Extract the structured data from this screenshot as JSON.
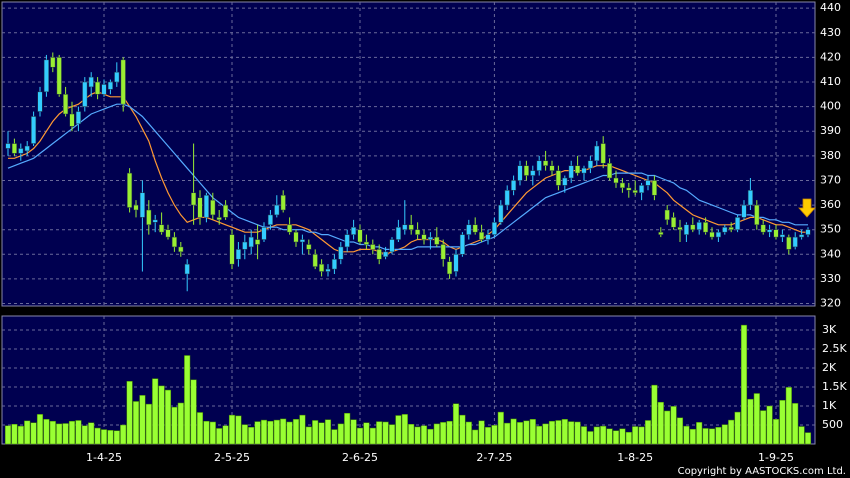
{
  "chart_data": {
    "type": "candlestick",
    "categories": [
      null,
      null,
      null,
      null,
      null,
      null,
      null,
      null,
      null,
      null,
      null,
      null,
      null,
      null,
      null,
      "1-4-25",
      null,
      null,
      null,
      null,
      null,
      null,
      null,
      null,
      null,
      null,
      null,
      null,
      null,
      null,
      null,
      null,
      null,
      null,
      null,
      "2-5-25",
      null,
      null,
      null,
      null,
      null,
      null,
      null,
      null,
      null,
      null,
      null,
      null,
      null,
      null,
      null,
      null,
      null,
      null,
      null,
      "2-6-25",
      null,
      null,
      null,
      null,
      null,
      null,
      null,
      null,
      null,
      null,
      null,
      null,
      null,
      null,
      null,
      null,
      null,
      null,
      null,
      null,
      "2-7-25",
      null,
      null,
      null,
      null,
      null,
      null,
      null,
      null,
      null,
      null,
      null,
      null,
      null,
      null,
      null,
      null,
      null,
      null,
      null,
      null,
      null,
      "1-8-25",
      null,
      null,
      null,
      null,
      null,
      null,
      null,
      null,
      null,
      null,
      null,
      null,
      null,
      null,
      null,
      null,
      null,
      null,
      null,
      null,
      null,
      "1-9-25",
      null,
      null,
      null,
      null,
      null
    ],
    "candles": [
      [
        383,
        390,
        380,
        385
      ],
      [
        385,
        387,
        380,
        381
      ],
      [
        381,
        385,
        378,
        383
      ],
      [
        382,
        386,
        380,
        384
      ],
      [
        385,
        398,
        384,
        396
      ],
      [
        398,
        408,
        396,
        406
      ],
      [
        406,
        421,
        404,
        419
      ],
      [
        420,
        422,
        414,
        416
      ],
      [
        420,
        421,
        404,
        405
      ],
      [
        405,
        408,
        396,
        397
      ],
      [
        397,
        402,
        390,
        392
      ],
      [
        393,
        400,
        390,
        398
      ],
      [
        400,
        412,
        398,
        410
      ],
      [
        408,
        414,
        404,
        412
      ],
      [
        410,
        412,
        403,
        405
      ],
      [
        405,
        411,
        404,
        409
      ],
      [
        407,
        411,
        405,
        410
      ],
      [
        410,
        418,
        408,
        414
      ],
      [
        419,
        420,
        398,
        401
      ],
      [
        373,
        375,
        357,
        359
      ],
      [
        360,
        362,
        355,
        358
      ],
      [
        355,
        370,
        333,
        365
      ],
      [
        358,
        362,
        348,
        352
      ],
      [
        353,
        356,
        349,
        354
      ],
      [
        352,
        357,
        348,
        349
      ],
      [
        350,
        352,
        346,
        347
      ],
      [
        347,
        349,
        341,
        343
      ],
      [
        343,
        345,
        339,
        341
      ],
      [
        332,
        338,
        325,
        336
      ],
      [
        365,
        385,
        352,
        360
      ],
      [
        363,
        366,
        352,
        355
      ],
      [
        355,
        365,
        353,
        364
      ],
      [
        362,
        365,
        354,
        356
      ],
      [
        355,
        358,
        352,
        354
      ],
      [
        360,
        362,
        354,
        355
      ],
      [
        348,
        350,
        334,
        336
      ],
      [
        338,
        345,
        335,
        342
      ],
      [
        342,
        348,
        338,
        345
      ],
      [
        343,
        350,
        340,
        347
      ],
      [
        346,
        352,
        338,
        344
      ],
      [
        346,
        353,
        345,
        351
      ],
      [
        352,
        358,
        350,
        356
      ],
      [
        356,
        364,
        355,
        360
      ],
      [
        364,
        366,
        357,
        358
      ],
      [
        352,
        355,
        348,
        349
      ],
      [
        349,
        350,
        343,
        345
      ],
      [
        345,
        348,
        340,
        346
      ],
      [
        344,
        346,
        340,
        342
      ],
      [
        340,
        342,
        334,
        335
      ],
      [
        336,
        338,
        331,
        333
      ],
      [
        333,
        336,
        331,
        334
      ],
      [
        334,
        340,
        332,
        338
      ],
      [
        338,
        345,
        336,
        343
      ],
      [
        343,
        350,
        341,
        348
      ],
      [
        348,
        354,
        346,
        351
      ],
      [
        350,
        352,
        344,
        345
      ],
      [
        345,
        348,
        342,
        344
      ],
      [
        344,
        346,
        340,
        342
      ],
      [
        342,
        344,
        336,
        338
      ],
      [
        339,
        343,
        338,
        341
      ],
      [
        341,
        347,
        340,
        346
      ],
      [
        346,
        354,
        345,
        351
      ],
      [
        350,
        362,
        348,
        352
      ],
      [
        352,
        356,
        348,
        350
      ],
      [
        350,
        353,
        346,
        348
      ],
      [
        348,
        350,
        344,
        346
      ],
      [
        346,
        349,
        342,
        347
      ],
      [
        347,
        351,
        343,
        344
      ],
      [
        344,
        346,
        335,
        338
      ],
      [
        337,
        339,
        330,
        332
      ],
      [
        333,
        342,
        331,
        340
      ],
      [
        340,
        349,
        339,
        348
      ],
      [
        348,
        354,
        346,
        352
      ],
      [
        352,
        355,
        348,
        349
      ],
      [
        349,
        352,
        345,
        346
      ],
      [
        346,
        350,
        344,
        348
      ],
      [
        348,
        355,
        347,
        353
      ],
      [
        353,
        362,
        352,
        360
      ],
      [
        360,
        368,
        358,
        366
      ],
      [
        366,
        372,
        364,
        370
      ],
      [
        370,
        378,
        368,
        376
      ],
      [
        376,
        378,
        370,
        372
      ],
      [
        372,
        376,
        368,
        374
      ],
      [
        374,
        380,
        372,
        378
      ],
      [
        378,
        382,
        374,
        376
      ],
      [
        376,
        378,
        372,
        374
      ],
      [
        374,
        376,
        366,
        368
      ],
      [
        368,
        372,
        365,
        371
      ],
      [
        371,
        378,
        369,
        376
      ],
      [
        376,
        380,
        372,
        373
      ],
      [
        373,
        376,
        370,
        375
      ],
      [
        375,
        380,
        373,
        378
      ],
      [
        378,
        386,
        376,
        384
      ],
      [
        385,
        388,
        375,
        377
      ],
      [
        377,
        379,
        370,
        371
      ],
      [
        371,
        374,
        367,
        369
      ],
      [
        369,
        371,
        365,
        367
      ],
      [
        367,
        369,
        363,
        366
      ],
      [
        366,
        370,
        364,
        365
      ],
      [
        365,
        369,
        362,
        368
      ],
      [
        368,
        372,
        366,
        370
      ],
      [
        370,
        372,
        362,
        364
      ],
      [
        349,
        351,
        347,
        348
      ],
      [
        358,
        360,
        352,
        354
      ],
      [
        355,
        357,
        350,
        351
      ],
      [
        351,
        354,
        345,
        350
      ],
      [
        348,
        353,
        345,
        352
      ],
      [
        352,
        355,
        349,
        350
      ],
      [
        350,
        354,
        348,
        353
      ],
      [
        353,
        355,
        348,
        349
      ],
      [
        349,
        351,
        346,
        347
      ],
      [
        347,
        350,
        345,
        349
      ],
      [
        349,
        352,
        348,
        351
      ],
      [
        351,
        353,
        349,
        350
      ],
      [
        350,
        356,
        349,
        355
      ],
      [
        355,
        362,
        354,
        360
      ],
      [
        360,
        371,
        358,
        366
      ],
      [
        360,
        362,
        350,
        352
      ],
      [
        352,
        354,
        348,
        349
      ],
      [
        349,
        352,
        347,
        350
      ],
      [
        350,
        352,
        346,
        347
      ],
      [
        347,
        350,
        345,
        348
      ],
      [
        347,
        348,
        340,
        342
      ],
      [
        343,
        349,
        342,
        347
      ],
      [
        347,
        350,
        346,
        348
      ],
      [
        348,
        351,
        347,
        350
      ]
    ],
    "up_color": "#33ccff",
    "down_color": "#99ee33",
    "series": [
      {
        "color": "#ff9933",
        "values": [
          379,
          379,
          380,
          381,
          383,
          386,
          390,
          394,
          397,
          399,
          400,
          401,
          403,
          405,
          406,
          405,
          404,
          404,
          404,
          400,
          396,
          391,
          386,
          378,
          371,
          365,
          360,
          356,
          353,
          354,
          355,
          355,
          354,
          353,
          352,
          351,
          350,
          349,
          349,
          349,
          350,
          351,
          352,
          352,
          352,
          352,
          351,
          350,
          348,
          346,
          344,
          342,
          341,
          341,
          341,
          342,
          342,
          342,
          341,
          340,
          341,
          342,
          343,
          345,
          346,
          346,
          346,
          346,
          345,
          343,
          342,
          343,
          344,
          345,
          346,
          348,
          350,
          353,
          356,
          359,
          362,
          365,
          367,
          369,
          371,
          372,
          373,
          374,
          374,
          374,
          374,
          375,
          376,
          376,
          376,
          375,
          374,
          373,
          372,
          371,
          370,
          369,
          367,
          365,
          362,
          360,
          358,
          356,
          355,
          354,
          353,
          352,
          352,
          352,
          353,
          354,
          355,
          355,
          354,
          353,
          352,
          352,
          351,
          350,
          349,
          349
        ]
      },
      {
        "color": "#55aaff",
        "values": [
          375,
          376,
          377,
          378,
          379,
          381,
          383,
          385,
          387,
          389,
          391,
          393,
          395,
          397,
          398,
          399,
          400,
          401,
          401,
          400,
          398,
          396,
          393,
          390,
          387,
          384,
          381,
          378,
          375,
          372,
          369,
          366,
          363,
          361,
          359,
          357,
          355,
          354,
          353,
          352,
          351,
          351,
          351,
          350,
          350,
          350,
          350,
          349,
          349,
          348,
          348,
          347,
          346,
          345,
          345,
          344,
          344,
          343,
          343,
          342,
          342,
          342,
          342,
          342,
          343,
          343,
          343,
          343,
          343,
          343,
          343,
          343,
          344,
          344,
          345,
          346,
          347,
          349,
          351,
          353,
          355,
          357,
          359,
          361,
          363,
          364,
          365,
          366,
          367,
          368,
          369,
          370,
          371,
          372,
          372,
          373,
          373,
          373,
          373,
          373,
          372,
          372,
          371,
          370,
          369,
          367,
          366,
          364,
          362,
          361,
          360,
          359,
          358,
          357,
          356,
          356,
          356,
          355,
          355,
          354,
          354,
          353,
          353,
          352,
          352,
          352
        ]
      }
    ],
    "ylim": [
      319,
      442.5
    ],
    "yticks": [
      320,
      330,
      340,
      350,
      360,
      370,
      380,
      390,
      400,
      410,
      420,
      430,
      440
    ],
    "grid": true,
    "volume": {
      "type": "bar",
      "color": "#99ff33",
      "values": [
        480,
        520,
        470,
        610,
        560,
        780,
        650,
        600,
        530,
        540,
        600,
        620,
        480,
        560,
        420,
        380,
        360,
        350,
        500,
        1650,
        1120,
        1280,
        1050,
        1720,
        1530,
        1420,
        970,
        1080,
        2330,
        1690,
        830,
        600,
        580,
        410,
        480,
        760,
        740,
        510,
        440,
        590,
        630,
        600,
        630,
        660,
        580,
        650,
        760,
        450,
        620,
        560,
        640,
        380,
        530,
        810,
        640,
        420,
        560,
        420,
        590,
        580,
        510,
        750,
        780,
        520,
        450,
        480,
        390,
        530,
        570,
        600,
        1060,
        760,
        580,
        370,
        610,
        440,
        490,
        840,
        550,
        660,
        570,
        610,
        650,
        470,
        530,
        600,
        620,
        650,
        590,
        580,
        460,
        330,
        450,
        470,
        400,
        350,
        400,
        310,
        460,
        450,
        620,
        1550,
        1100,
        870,
        990,
        690,
        470,
        390,
        570,
        410,
        400,
        440,
        510,
        630,
        840,
        3130,
        1180,
        1330,
        880,
        1000,
        650,
        1150,
        1490,
        1070,
        460,
        300
      ],
      "ylim": [
        0,
        3370
      ],
      "yticks": [
        500,
        {
          "value": 1000,
          "label": "1K"
        },
        {
          "value": 1500,
          "label": "1.5K"
        },
        {
          "value": 2000,
          "label": "2K"
        },
        {
          "value": 2500,
          "label": "2.5K"
        },
        {
          "value": 3000,
          "label": "3K"
        }
      ]
    },
    "copyright": "Copyright by AASTOCKS.com Ltd."
  }
}
